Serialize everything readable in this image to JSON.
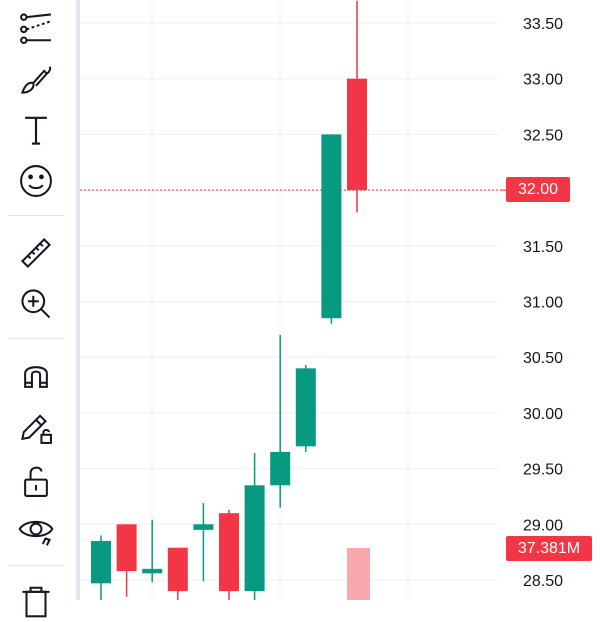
{
  "toolbar": {
    "tools": [
      {
        "name": "trend-line-tools-icon"
      },
      {
        "name": "brush-icon"
      },
      {
        "name": "text-icon"
      },
      {
        "name": "emoji-icon"
      },
      {
        "name": "ruler-icon"
      },
      {
        "name": "zoom-in-icon"
      },
      {
        "name": "magnet-icon"
      },
      {
        "name": "lock-drawing-icon"
      },
      {
        "name": "unlock-icon"
      },
      {
        "name": "eye-icon"
      },
      {
        "name": "trash-icon"
      }
    ]
  },
  "chart_data": {
    "type": "candlestick",
    "y_axis": {
      "ticks": [
        "33.50",
        "33.00",
        "32.50",
        "32.00",
        "31.50",
        "31.00",
        "30.50",
        "30.00",
        "29.50",
        "29.00",
        "28.50"
      ],
      "ylim": [
        28.3,
        33.7
      ]
    },
    "candles": [
      {
        "open": 28.47,
        "high": 28.9,
        "low": 28.3,
        "close": 28.85
      },
      {
        "open": 29.0,
        "high": 29.0,
        "low": 28.35,
        "close": 28.58
      },
      {
        "open": 28.56,
        "high": 29.04,
        "low": 28.48,
        "close": 28.6
      },
      {
        "open": 28.79,
        "high": 28.79,
        "low": 28.3,
        "close": 28.4
      },
      {
        "open": 28.95,
        "high": 29.19,
        "low": 28.49,
        "close": 29.0
      },
      {
        "open": 29.1,
        "high": 29.13,
        "low": 28.3,
        "close": 28.4
      },
      {
        "open": 28.4,
        "high": 29.64,
        "low": 28.3,
        "close": 29.35
      },
      {
        "open": 29.35,
        "high": 30.7,
        "low": 29.15,
        "close": 29.65
      },
      {
        "open": 29.7,
        "high": 30.43,
        "low": 29.65,
        "close": 30.4
      },
      {
        "open": 30.85,
        "high": 32.5,
        "low": 30.8,
        "close": 32.5
      },
      {
        "open": 33.0,
        "high": 33.7,
        "low": 31.8,
        "close": 32.0
      }
    ],
    "current_price": "32.00",
    "current_volume": "37.381M",
    "colors": {
      "up": "#089981",
      "down": "#f23645",
      "volume": "#f9a8ae"
    }
  }
}
